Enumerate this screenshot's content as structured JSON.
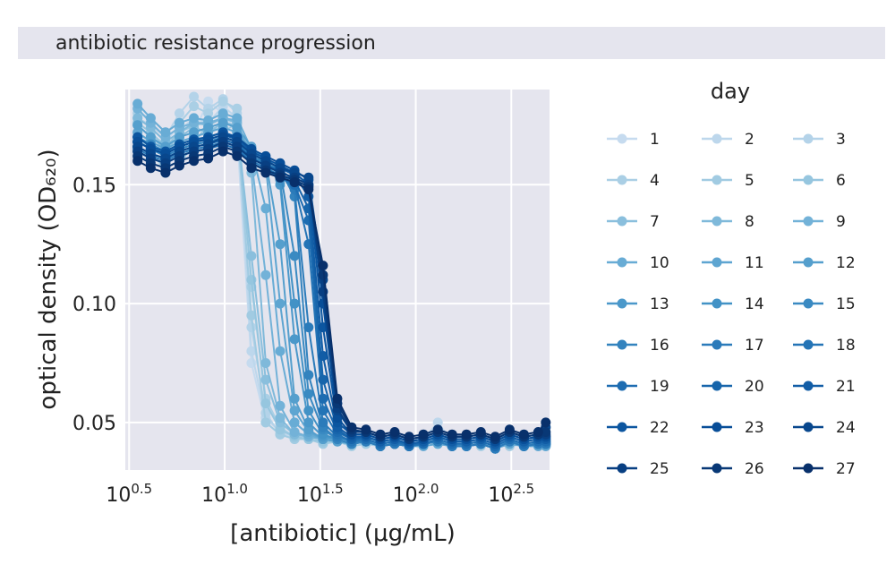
{
  "chart_data": {
    "type": "line",
    "title": "antibiotic resistance progression",
    "xlabel": "[antibiotic] (μg/mL)",
    "ylabel": "optical density (OD₆₂₀)",
    "xscale": "log10",
    "xlim_log10": [
      0.48,
      2.7
    ],
    "ylim": [
      0.03,
      0.19
    ],
    "x_ticks": [
      {
        "base": "10",
        "exp": "0.5",
        "value": 0.5
      },
      {
        "base": "10",
        "exp": "1.0",
        "value": 1.0
      },
      {
        "base": "10",
        "exp": "1.5",
        "value": 1.5
      },
      {
        "base": "10",
        "exp": "2.0",
        "value": 2.0
      },
      {
        "base": "10",
        "exp": "2.5",
        "value": 2.5
      }
    ],
    "y_ticks": [
      "0.05",
      "0.10",
      "0.15"
    ],
    "y_tick_values": [
      0.05,
      0.1,
      0.15
    ],
    "legend_title": "day",
    "legend_placement": "right",
    "grid": true,
    "colormap": {
      "light": "#c6dbef",
      "dark": "#08306b"
    },
    "concentrations_ug_per_mL": [
      3.5,
      4.1,
      4.9,
      5.8,
      6.9,
      8.2,
      9.8,
      11.6,
      13.8,
      16.4,
      19.5,
      23.2,
      27.5,
      32.7,
      38.9,
      46.2,
      54.9,
      65.3,
      77.6,
      92.3,
      109.7,
      130.4,
      155.0,
      184.3,
      219.1,
      260.5,
      309.7,
      368.2,
      437.7,
      479.0
    ],
    "series": [
      {
        "name": "1",
        "values": [
          0.165,
          0.17,
          0.168,
          0.175,
          0.172,
          0.185,
          0.18,
          0.172,
          0.075,
          0.05,
          0.045,
          0.044,
          0.043,
          0.043,
          0.042,
          0.042,
          0.041,
          0.043,
          0.042,
          0.04,
          0.041,
          0.043,
          0.042,
          0.041,
          0.042,
          0.04,
          0.043,
          0.041,
          0.042,
          0.042
        ]
      },
      {
        "name": "2",
        "values": [
          0.172,
          0.168,
          0.165,
          0.173,
          0.178,
          0.176,
          0.183,
          0.178,
          0.08,
          0.052,
          0.046,
          0.044,
          0.044,
          0.042,
          0.043,
          0.041,
          0.043,
          0.042,
          0.042,
          0.041,
          0.043,
          0.05,
          0.042,
          0.041,
          0.042,
          0.041,
          0.042,
          0.04,
          0.041,
          0.04
        ]
      },
      {
        "name": "3",
        "values": [
          0.178,
          0.175,
          0.17,
          0.18,
          0.187,
          0.182,
          0.186,
          0.18,
          0.09,
          0.054,
          0.045,
          0.043,
          0.044,
          0.043,
          0.042,
          0.042,
          0.044,
          0.041,
          0.043,
          0.043,
          0.041,
          0.044,
          0.043,
          0.042,
          0.042,
          0.04,
          0.043,
          0.041,
          0.042,
          0.041
        ]
      },
      {
        "name": "4",
        "values": [
          0.18,
          0.178,
          0.172,
          0.176,
          0.183,
          0.18,
          0.185,
          0.182,
          0.107,
          0.06,
          0.048,
          0.044,
          0.043,
          0.042,
          0.043,
          0.041,
          0.043,
          0.042,
          0.042,
          0.04,
          0.041,
          0.043,
          0.041,
          0.041,
          0.042,
          0.04,
          0.042,
          0.041,
          0.041,
          0.041
        ]
      },
      {
        "name": "5",
        "values": [
          0.17,
          0.165,
          0.155,
          0.158,
          0.168,
          0.175,
          0.172,
          0.176,
          0.095,
          0.05,
          0.045,
          0.043,
          0.043,
          0.041,
          0.042,
          0.04,
          0.041,
          0.04,
          0.041,
          0.04,
          0.042,
          0.041,
          0.04,
          0.041,
          0.04,
          0.041,
          0.04,
          0.041,
          0.04,
          0.04
        ]
      },
      {
        "name": "6",
        "values": [
          0.176,
          0.172,
          0.166,
          0.172,
          0.175,
          0.176,
          0.178,
          0.176,
          0.11,
          0.058,
          0.047,
          0.044,
          0.043,
          0.042,
          0.042,
          0.041,
          0.042,
          0.041,
          0.042,
          0.04,
          0.041,
          0.042,
          0.041,
          0.04,
          0.041,
          0.04,
          0.042,
          0.04,
          0.041,
          0.041
        ]
      },
      {
        "name": "7",
        "values": [
          0.175,
          0.17,
          0.165,
          0.17,
          0.174,
          0.172,
          0.176,
          0.175,
          0.12,
          0.068,
          0.05,
          0.045,
          0.044,
          0.043,
          0.043,
          0.041,
          0.043,
          0.041,
          0.042,
          0.04,
          0.041,
          0.043,
          0.041,
          0.041,
          0.042,
          0.04,
          0.042,
          0.041,
          0.041,
          0.041
        ]
      },
      {
        "name": "8",
        "values": [
          0.178,
          0.174,
          0.168,
          0.172,
          0.176,
          0.175,
          0.178,
          0.176,
          0.155,
          0.075,
          0.052,
          0.045,
          0.044,
          0.043,
          0.042,
          0.041,
          0.042,
          0.041,
          0.042,
          0.04,
          0.041,
          0.042,
          0.041,
          0.04,
          0.041,
          0.04,
          0.042,
          0.04,
          0.041,
          0.041
        ]
      },
      {
        "name": "9",
        "values": [
          0.182,
          0.176,
          0.17,
          0.174,
          0.176,
          0.176,
          0.178,
          0.177,
          0.16,
          0.112,
          0.057,
          0.046,
          0.044,
          0.043,
          0.043,
          0.042,
          0.042,
          0.041,
          0.042,
          0.041,
          0.041,
          0.042,
          0.041,
          0.041,
          0.042,
          0.04,
          0.042,
          0.041,
          0.041,
          0.041
        ]
      },
      {
        "name": "10",
        "values": [
          0.184,
          0.178,
          0.172,
          0.176,
          0.178,
          0.177,
          0.18,
          0.178,
          0.165,
          0.14,
          0.08,
          0.05,
          0.045,
          0.043,
          0.043,
          0.042,
          0.043,
          0.041,
          0.042,
          0.041,
          0.041,
          0.043,
          0.041,
          0.041,
          0.042,
          0.04,
          0.043,
          0.041,
          0.042,
          0.042
        ]
      },
      {
        "name": "11",
        "values": [
          0.172,
          0.168,
          0.165,
          0.168,
          0.17,
          0.172,
          0.174,
          0.172,
          0.165,
          0.158,
          0.1,
          0.055,
          0.046,
          0.043,
          0.042,
          0.041,
          0.042,
          0.04,
          0.041,
          0.04,
          0.04,
          0.041,
          0.04,
          0.04,
          0.041,
          0.039,
          0.041,
          0.04,
          0.04,
          0.04
        ]
      },
      {
        "name": "12",
        "values": [
          0.175,
          0.17,
          0.166,
          0.17,
          0.172,
          0.174,
          0.176,
          0.174,
          0.166,
          0.16,
          0.125,
          0.06,
          0.047,
          0.043,
          0.042,
          0.041,
          0.042,
          0.04,
          0.041,
          0.04,
          0.041,
          0.042,
          0.04,
          0.04,
          0.041,
          0.039,
          0.042,
          0.04,
          0.041,
          0.041
        ]
      },
      {
        "name": "13",
        "values": [
          0.17,
          0.166,
          0.163,
          0.166,
          0.168,
          0.17,
          0.172,
          0.17,
          0.163,
          0.16,
          0.15,
          0.085,
          0.05,
          0.044,
          0.043,
          0.041,
          0.042,
          0.04,
          0.041,
          0.04,
          0.041,
          0.042,
          0.04,
          0.04,
          0.041,
          0.039,
          0.042,
          0.04,
          0.041,
          0.041
        ]
      },
      {
        "name": "14",
        "values": [
          0.168,
          0.165,
          0.162,
          0.165,
          0.167,
          0.168,
          0.17,
          0.168,
          0.162,
          0.158,
          0.152,
          0.1,
          0.055,
          0.045,
          0.043,
          0.041,
          0.042,
          0.04,
          0.041,
          0.04,
          0.041,
          0.042,
          0.04,
          0.04,
          0.041,
          0.039,
          0.042,
          0.04,
          0.041,
          0.041
        ]
      },
      {
        "name": "15",
        "values": [
          0.17,
          0.167,
          0.164,
          0.167,
          0.169,
          0.17,
          0.172,
          0.17,
          0.164,
          0.161,
          0.156,
          0.12,
          0.062,
          0.047,
          0.043,
          0.041,
          0.042,
          0.04,
          0.041,
          0.04,
          0.041,
          0.042,
          0.04,
          0.04,
          0.041,
          0.039,
          0.042,
          0.04,
          0.041,
          0.041
        ]
      },
      {
        "name": "16",
        "values": [
          0.168,
          0.165,
          0.162,
          0.165,
          0.167,
          0.168,
          0.17,
          0.168,
          0.162,
          0.159,
          0.156,
          0.145,
          0.07,
          0.048,
          0.043,
          0.041,
          0.042,
          0.04,
          0.041,
          0.04,
          0.041,
          0.042,
          0.04,
          0.04,
          0.041,
          0.039,
          0.042,
          0.04,
          0.041,
          0.041
        ]
      },
      {
        "name": "17",
        "values": [
          0.165,
          0.162,
          0.16,
          0.163,
          0.165,
          0.166,
          0.168,
          0.166,
          0.16,
          0.157,
          0.154,
          0.148,
          0.09,
          0.05,
          0.044,
          0.042,
          0.042,
          0.04,
          0.041,
          0.04,
          0.041,
          0.042,
          0.04,
          0.04,
          0.041,
          0.039,
          0.042,
          0.04,
          0.041,
          0.041
        ]
      },
      {
        "name": "18",
        "values": [
          0.166,
          0.163,
          0.161,
          0.164,
          0.166,
          0.167,
          0.169,
          0.167,
          0.161,
          0.158,
          0.155,
          0.15,
          0.125,
          0.055,
          0.045,
          0.042,
          0.043,
          0.041,
          0.042,
          0.04,
          0.041,
          0.043,
          0.041,
          0.041,
          0.042,
          0.04,
          0.043,
          0.041,
          0.042,
          0.042
        ]
      },
      {
        "name": "19",
        "values": [
          0.164,
          0.161,
          0.159,
          0.162,
          0.164,
          0.165,
          0.167,
          0.165,
          0.159,
          0.156,
          0.153,
          0.15,
          0.135,
          0.06,
          0.046,
          0.043,
          0.043,
          0.041,
          0.042,
          0.041,
          0.041,
          0.043,
          0.041,
          0.041,
          0.042,
          0.04,
          0.043,
          0.041,
          0.042,
          0.042
        ]
      },
      {
        "name": "20",
        "values": [
          0.166,
          0.163,
          0.161,
          0.164,
          0.166,
          0.167,
          0.169,
          0.167,
          0.161,
          0.158,
          0.156,
          0.152,
          0.14,
          0.068,
          0.047,
          0.043,
          0.044,
          0.042,
          0.043,
          0.041,
          0.042,
          0.044,
          0.042,
          0.042,
          0.043,
          0.041,
          0.044,
          0.042,
          0.043,
          0.043
        ]
      },
      {
        "name": "21",
        "values": [
          0.168,
          0.165,
          0.163,
          0.166,
          0.168,
          0.169,
          0.171,
          0.169,
          0.163,
          0.16,
          0.157,
          0.154,
          0.145,
          0.078,
          0.048,
          0.044,
          0.044,
          0.042,
          0.043,
          0.041,
          0.042,
          0.044,
          0.042,
          0.042,
          0.043,
          0.041,
          0.044,
          0.042,
          0.043,
          0.043
        ]
      },
      {
        "name": "22",
        "values": [
          0.17,
          0.166,
          0.164,
          0.167,
          0.169,
          0.17,
          0.172,
          0.17,
          0.164,
          0.161,
          0.158,
          0.155,
          0.15,
          0.09,
          0.05,
          0.045,
          0.045,
          0.043,
          0.044,
          0.042,
          0.043,
          0.045,
          0.043,
          0.043,
          0.044,
          0.042,
          0.045,
          0.043,
          0.044,
          0.044
        ]
      },
      {
        "name": "23",
        "values": [
          0.168,
          0.165,
          0.163,
          0.166,
          0.168,
          0.169,
          0.171,
          0.17,
          0.165,
          0.162,
          0.159,
          0.156,
          0.152,
          0.1,
          0.052,
          0.045,
          0.045,
          0.043,
          0.044,
          0.042,
          0.043,
          0.045,
          0.043,
          0.043,
          0.044,
          0.042,
          0.045,
          0.043,
          0.044,
          0.044
        ]
      },
      {
        "name": "24",
        "values": [
          0.166,
          0.163,
          0.161,
          0.164,
          0.166,
          0.167,
          0.17,
          0.168,
          0.163,
          0.16,
          0.157,
          0.155,
          0.153,
          0.11,
          0.055,
          0.046,
          0.046,
          0.044,
          0.045,
          0.043,
          0.044,
          0.046,
          0.044,
          0.044,
          0.045,
          0.043,
          0.046,
          0.044,
          0.045,
          0.048
        ]
      },
      {
        "name": "25",
        "values": [
          0.164,
          0.161,
          0.159,
          0.162,
          0.164,
          0.165,
          0.168,
          0.166,
          0.161,
          0.158,
          0.155,
          0.153,
          0.15,
          0.105,
          0.056,
          0.046,
          0.046,
          0.044,
          0.045,
          0.043,
          0.044,
          0.046,
          0.044,
          0.044,
          0.045,
          0.043,
          0.046,
          0.044,
          0.045,
          0.045
        ]
      },
      {
        "name": "26",
        "values": [
          0.162,
          0.159,
          0.157,
          0.16,
          0.162,
          0.163,
          0.166,
          0.164,
          0.159,
          0.156,
          0.154,
          0.152,
          0.149,
          0.112,
          0.058,
          0.047,
          0.046,
          0.044,
          0.045,
          0.043,
          0.044,
          0.046,
          0.044,
          0.044,
          0.045,
          0.043,
          0.046,
          0.044,
          0.045,
          0.046
        ]
      },
      {
        "name": "27",
        "values": [
          0.16,
          0.157,
          0.155,
          0.158,
          0.16,
          0.161,
          0.164,
          0.162,
          0.157,
          0.155,
          0.153,
          0.151,
          0.148,
          0.116,
          0.06,
          0.048,
          0.047,
          0.045,
          0.046,
          0.044,
          0.045,
          0.047,
          0.045,
          0.045,
          0.046,
          0.044,
          0.047,
          0.045,
          0.046,
          0.05
        ]
      }
    ]
  }
}
